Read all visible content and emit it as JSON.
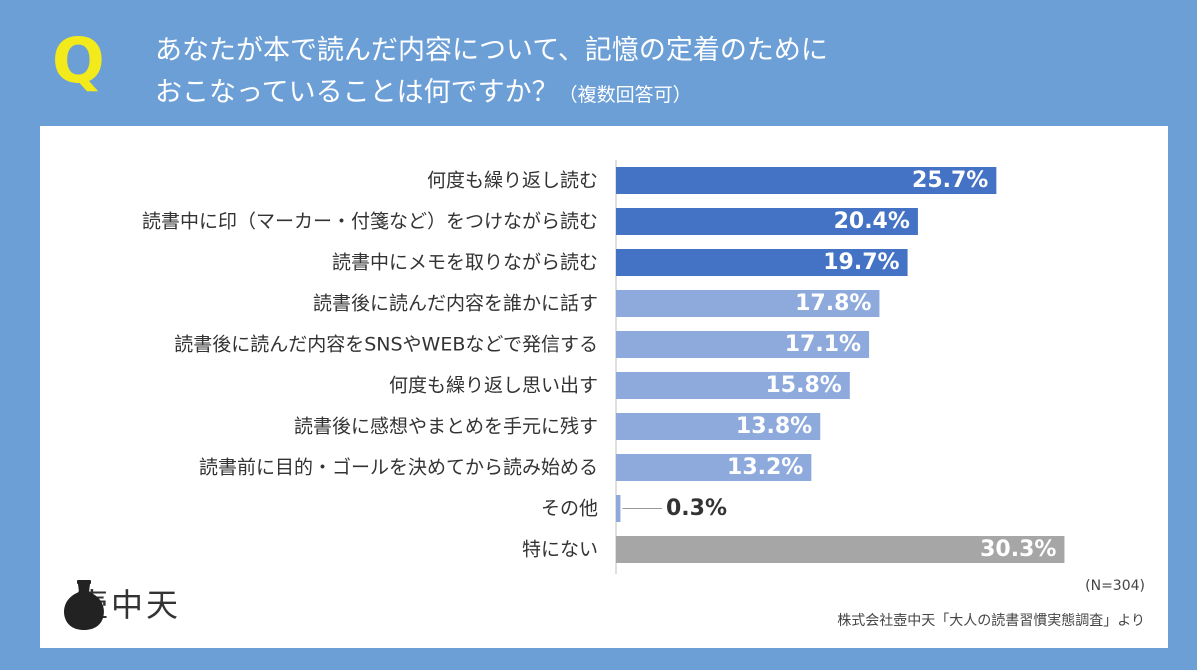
{
  "header": {
    "q_mark": "Q",
    "title_line1": "あなたが本で読んだ内容について、記憶の定着のために",
    "title_line2": "おこなっていることは何ですか？",
    "title_note": "（複数回答可）"
  },
  "chart_data": {
    "type": "bar",
    "orientation": "horizontal",
    "categories": [
      "何度も繰り返し読む",
      "読書中に印（マーカー・付箋など）をつけながら読む",
      "読書中にメモを取りながら読む",
      "読書後に読んだ内容を誰かに話す",
      "読書後に読んだ内容をSNSやWEBなどで発信する",
      "何度も繰り返し思い出す",
      "読書後に感想やまとめを手元に残す",
      "読書前に目的・ゴールを決めてから読み始める",
      "その他",
      "特にない"
    ],
    "values": [
      25.7,
      20.4,
      19.7,
      17.8,
      17.1,
      15.8,
      13.8,
      13.2,
      0.3,
      30.3
    ],
    "value_labels": [
      "25.7%",
      "20.4%",
      "19.7%",
      "17.8%",
      "17.1%",
      "15.8%",
      "13.8%",
      "13.2%",
      "0.3%",
      "30.3%"
    ],
    "bar_colors": [
      "#4472c4",
      "#4472c4",
      "#4472c4",
      "#8eaadc",
      "#8eaadc",
      "#8eaadc",
      "#8eaadc",
      "#8eaadc",
      "#8eaadc",
      "#a6a6a6"
    ],
    "xlim": [
      0,
      35
    ],
    "grid": false,
    "legend": "none"
  },
  "footer": {
    "n_label": "(N=304)",
    "source": "株式会社壺中天「大人の読書習慣実態調査」より",
    "logo_text": "壺中天"
  },
  "colors": {
    "background": "#6d9fd7",
    "q_mark": "#f2ea1a",
    "panel": "#ffffff"
  }
}
